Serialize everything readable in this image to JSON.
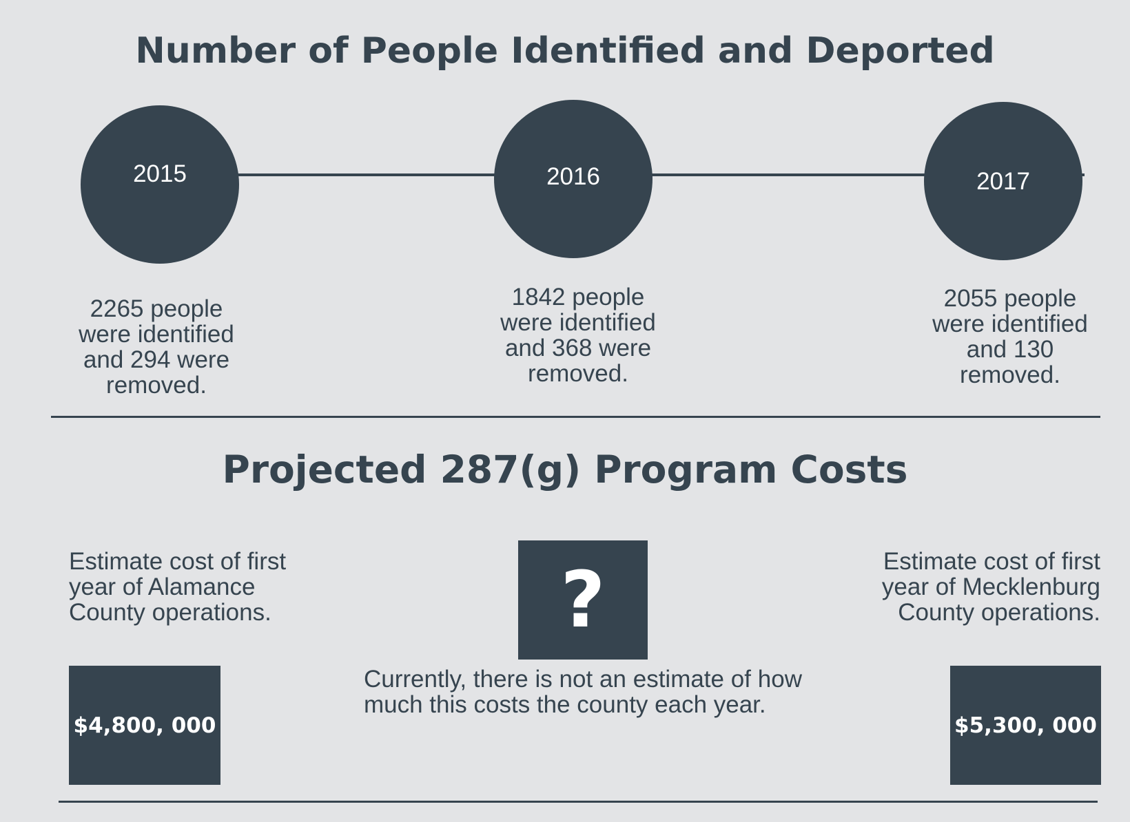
{
  "timeline": {
    "title": "Number of People Identified and Deported",
    "entries": [
      {
        "year": "2015",
        "text": "2265 people were identified and 294 were removed.",
        "identified": 2265,
        "removed": 294
      },
      {
        "year": "2016",
        "text": "1842 people were identified and 368 were removed.",
        "identified": 1842,
        "removed": 368
      },
      {
        "year": "2017",
        "text": "2055 people were identified and 130 removed.",
        "identified": 2055,
        "removed": 130
      }
    ]
  },
  "costs": {
    "title": "Projected 287(g) Program Costs",
    "alamance": {
      "label": "Estimate cost of first year of Alamance County operations.",
      "value": "$4,800, 000"
    },
    "unknown": {
      "icon_text": "?",
      "icon": "question-mark-icon",
      "note": "Currently, there is not an estimate of how much this costs the county each year."
    },
    "mecklenburg": {
      "label": "Estimate cost of first year of Mecklenburg County operations.",
      "value": "$5,300, 000"
    }
  },
  "colors": {
    "background": "#e3e4e6",
    "accent": "#36444f",
    "text_on_accent": "#ffffff"
  }
}
